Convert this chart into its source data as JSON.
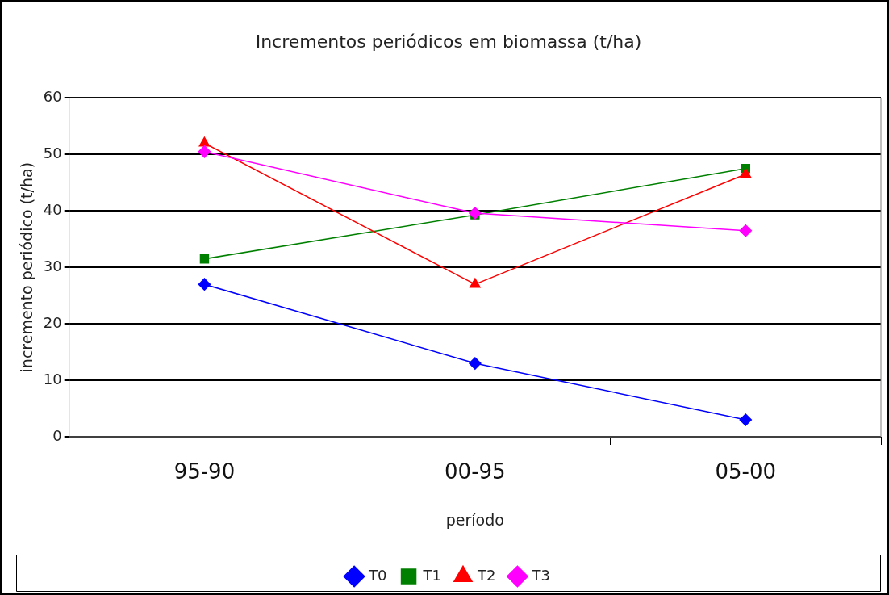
{
  "chart_data": {
    "type": "line",
    "title": "Incrementos periódicos em biomassa (t/ha)",
    "xlabel": "período",
    "ylabel": "incremento periódico (t/ha)",
    "categories": [
      "95-90",
      "00-95",
      "05-00"
    ],
    "series": [
      {
        "name": "T0",
        "color": "#0000ff",
        "marker": "diamond",
        "values": [
          27,
          13,
          3
        ]
      },
      {
        "name": "T1",
        "color": "#008000",
        "marker": "square",
        "values": [
          31.5,
          39.3,
          47.5
        ]
      },
      {
        "name": "T2",
        "color": "#ff0000",
        "marker": "triangle",
        "values": [
          52,
          27,
          46.5
        ]
      },
      {
        "name": "T3",
        "color": "#ff00ff",
        "marker": "diamond",
        "values": [
          50.5,
          39.6,
          36.5
        ]
      }
    ],
    "ylim": [
      0,
      60
    ],
    "yticks": [
      0,
      10,
      20,
      30,
      40,
      50,
      60
    ],
    "grid": "y",
    "legend": "bottom",
    "line_style": "solid"
  }
}
